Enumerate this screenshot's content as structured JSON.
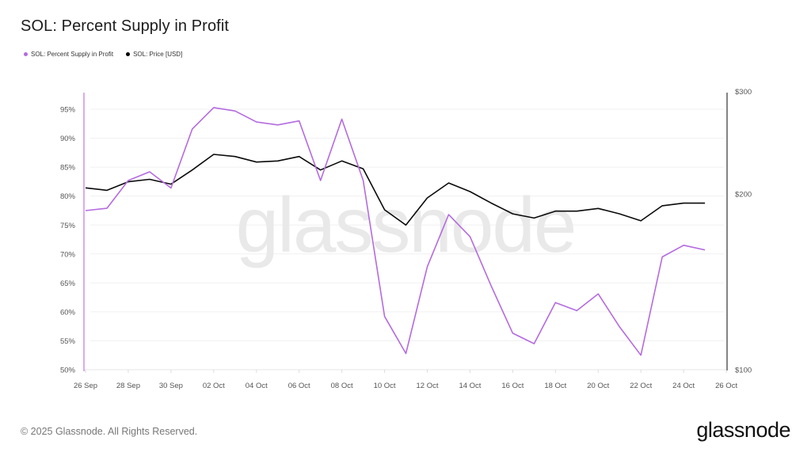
{
  "header": {
    "title": "SOL: Percent Supply in Profit"
  },
  "legend": {
    "items": [
      {
        "label": "SOL: Percent Supply in Profit",
        "color": "#b46be0"
      },
      {
        "label": "SOL: Price [USD]",
        "color": "#000000"
      }
    ]
  },
  "watermark": "glassnode",
  "footer": {
    "copyright": "© 2025 Glassnode. All Rights Reserved.",
    "logo": "glassnode"
  },
  "colors": {
    "supply_line": "#b46be0",
    "price_line": "#0a0a0a",
    "left_axis_line": "#c98ae8",
    "right_axis_line": "#333333",
    "grid": "#f0f0f0",
    "watermark": "#e9e9e9"
  },
  "chart_data": {
    "type": "line",
    "title": "SOL: Percent Supply in Profit",
    "xlabel": "",
    "ylabel": "Percent Supply in Profit",
    "y2label": "Price [USD]",
    "grid": true,
    "legend_position": "top-left",
    "ylim": [
      50,
      97
    ],
    "y2lim": [
      100,
      300
    ],
    "y2_scale": "log",
    "x_tick_labels": [
      "26 Sep",
      "28 Sep",
      "30 Sep",
      "02 Oct",
      "04 Oct",
      "06 Oct",
      "08 Oct",
      "10 Oct",
      "12 Oct",
      "14 Oct",
      "16 Oct",
      "18 Oct",
      "20 Oct",
      "22 Oct",
      "24 Oct",
      "26 Oct"
    ],
    "y_tick_labels": [
      "50%",
      "55%",
      "60%",
      "65%",
      "70%",
      "75%",
      "80%",
      "85%",
      "90%",
      "95%"
    ],
    "y_ticks": [
      50,
      55,
      60,
      65,
      70,
      75,
      80,
      85,
      90,
      95
    ],
    "y2_tick_labels": [
      "$100",
      "$200",
      "$300"
    ],
    "y2_ticks": [
      100,
      200,
      300
    ],
    "x": [
      "26 Sep",
      "27 Sep",
      "28 Sep",
      "29 Sep",
      "30 Sep",
      "01 Oct",
      "02 Oct",
      "03 Oct",
      "04 Oct",
      "05 Oct",
      "06 Oct",
      "07 Oct",
      "08 Oct",
      "09 Oct",
      "10 Oct",
      "11 Oct",
      "12 Oct",
      "13 Oct",
      "14 Oct",
      "15 Oct",
      "16 Oct",
      "17 Oct",
      "18 Oct",
      "19 Oct",
      "20 Oct",
      "21 Oct",
      "22 Oct",
      "23 Oct",
      "24 Oct",
      "25 Oct"
    ],
    "series": [
      {
        "name": "SOL: Percent Supply in Profit",
        "axis": "left",
        "unit": "%",
        "values": [
          77.5,
          77.9,
          82.7,
          84.2,
          81.4,
          91.6,
          95.3,
          94.7,
          92.8,
          92.3,
          93.0,
          82.7,
          93.3,
          82.7,
          59.2,
          52.8,
          67.8,
          76.8,
          73.0,
          64.4,
          56.3,
          54.5,
          61.6,
          60.2,
          63.1,
          57.4,
          52.5,
          69.5,
          71.5,
          70.7
        ]
      },
      {
        "name": "SOL: Price [USD]",
        "axis": "right",
        "unit": "USD",
        "values": [
          205,
          203,
          210,
          212,
          208,
          220,
          234,
          232,
          227,
          228,
          232,
          220,
          228,
          221,
          188,
          177,
          197,
          209,
          202,
          193,
          185,
          182,
          187,
          187,
          189,
          185,
          180,
          191,
          193,
          193
        ]
      }
    ]
  }
}
